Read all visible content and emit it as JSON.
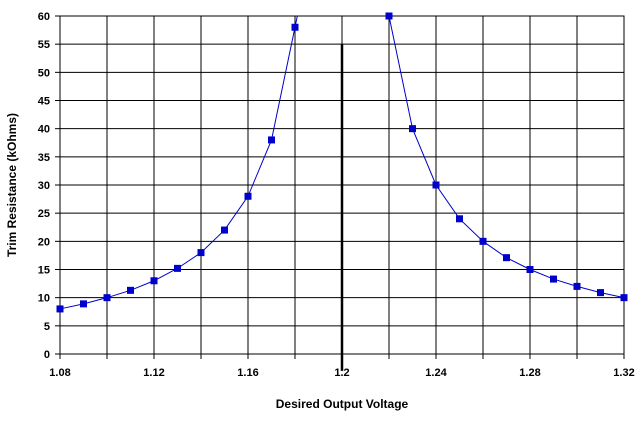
{
  "chart_data": {
    "type": "scatter",
    "title": "",
    "xlabel": "Desired Output Voltage",
    "ylabel": "Trim Resistance (kOhms)",
    "xlim": [
      1.08,
      1.32
    ],
    "ylim": [
      0,
      60
    ],
    "xticks": [
      1.08,
      1.12,
      1.16,
      1.2,
      1.24,
      1.28,
      1.32
    ],
    "xtick_labels": [
      "1.08",
      "1.12",
      "1.16",
      "1.2",
      "1.24",
      "1.28",
      "1.32"
    ],
    "yticks": [
      0,
      5,
      10,
      15,
      20,
      25,
      30,
      35,
      40,
      45,
      50,
      55,
      60
    ],
    "ytick_labels": [
      "0",
      "5",
      "10",
      "15",
      "20",
      "25",
      "30",
      "35",
      "40",
      "45",
      "50",
      "55",
      "60"
    ],
    "grid": true,
    "legend": "none",
    "series": [
      {
        "color": "#0000CC",
        "marker": "square",
        "points": [
          [
            1.08,
            8.0
          ],
          [
            1.09,
            8.9
          ],
          [
            1.1,
            10.0
          ],
          [
            1.11,
            11.3
          ],
          [
            1.12,
            13.0
          ],
          [
            1.13,
            15.2
          ],
          [
            1.14,
            18.0
          ],
          [
            1.15,
            22.0
          ],
          [
            1.16,
            28.0
          ],
          [
            1.17,
            38.0
          ],
          [
            1.18,
            58.0
          ]
        ],
        "line_extends_to": [
          1.181,
          60
        ]
      },
      {
        "color": "#0000CC",
        "marker": "square",
        "points": [
          [
            1.22,
            60.0
          ],
          [
            1.23,
            40.0
          ],
          [
            1.24,
            30.0
          ],
          [
            1.25,
            24.0
          ],
          [
            1.26,
            20.0
          ],
          [
            1.27,
            17.1
          ],
          [
            1.28,
            15.0
          ],
          [
            1.29,
            13.3
          ],
          [
            1.3,
            12.0
          ],
          [
            1.31,
            10.9
          ],
          [
            1.32,
            10.0
          ]
        ]
      }
    ],
    "reference_line": {
      "x": 1.2,
      "y_range": [
        -3,
        55
      ],
      "color": "#000000"
    }
  }
}
